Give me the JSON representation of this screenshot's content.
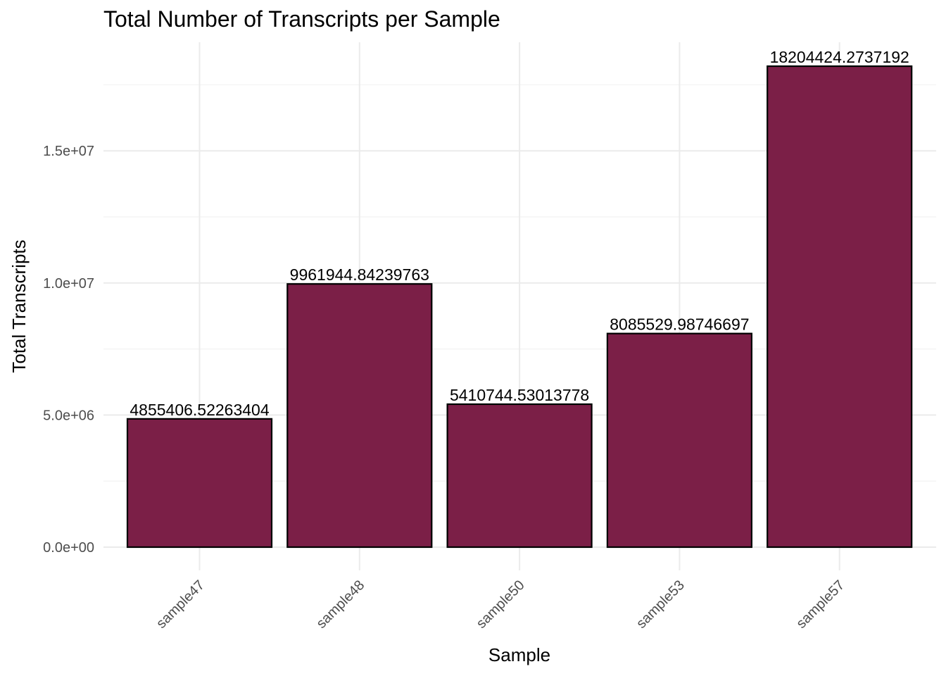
{
  "chart_data": {
    "type": "bar",
    "title": "Total Number of Transcripts per Sample",
    "xlabel": "Sample",
    "ylabel": "Total Transcripts",
    "categories": [
      "sample47",
      "sample48",
      "sample50",
      "sample53",
      "sample57"
    ],
    "values": [
      4855406.52263404,
      9961944.84239763,
      5410744.53013778,
      8085529.98746697,
      18204424.2737192
    ],
    "data_labels": [
      "4855406.52263404",
      "9961944.84239763",
      "5410744.53013778",
      "8085529.98746697",
      "18204424.2737192"
    ],
    "y_ticks": [
      0,
      5000000,
      10000000,
      15000000
    ],
    "y_tick_labels": [
      "0.0e+00",
      "5.0e+06",
      "1.0e+07",
      "1.5e+07"
    ],
    "ylim": [
      0,
      18204424.2737192
    ],
    "grid": true,
    "legend": "none",
    "bar_color": "#7b1f47",
    "bar_outline_color": "#000000"
  }
}
